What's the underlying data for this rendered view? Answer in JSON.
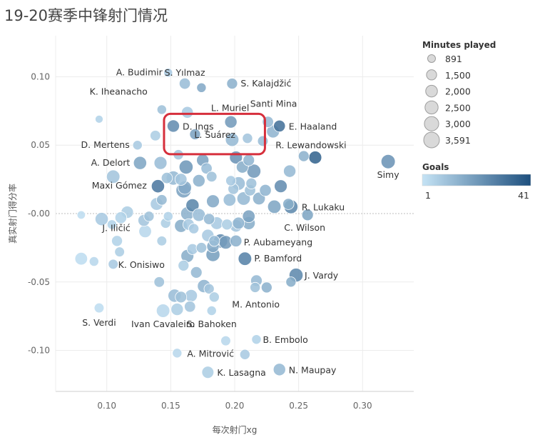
{
  "title": "19-20赛季中锋射门情况",
  "chart_data": {
    "type": "scatter",
    "title": "19-20赛季中锋射门情况",
    "xlabel": "每次射门xg",
    "ylabel": "真实射门得分率",
    "xlim": [
      0.06,
      0.34
    ],
    "ylim": [
      -0.13,
      0.13
    ],
    "x_ticks": [
      0.1,
      0.15,
      0.2,
      0.25,
      0.3
    ],
    "x_tick_labels": [
      "0.10",
      "0.15",
      "0.20",
      "0.25",
      "0.30"
    ],
    "y_ticks": [
      0.1,
      0.05,
      0.0,
      -0.05,
      -0.1
    ],
    "y_tick_labels": [
      "0.10",
      "0.05",
      "-0.00",
      "-0.05",
      "-0.10"
    ],
    "grid": true,
    "size_legend": {
      "title": "Minutes played",
      "values": [
        891,
        1500,
        2000,
        2500,
        3000,
        3591
      ],
      "labels": [
        "891",
        "1,500",
        "2,000",
        "2,500",
        "3,000",
        "3,591"
      ]
    },
    "color_legend": {
      "title": "Goals",
      "min": 1,
      "max": 41,
      "min_label": "1",
      "max_label": "41",
      "color_low": "#c5e3f5",
      "color_high": "#1d4f7e"
    },
    "highlight": [
      "D. Ings",
      "L. Suárez"
    ],
    "highlight_color": "#d62f3c",
    "points": [
      {
        "name": "A. Budimir",
        "x": 0.148,
        "y": 0.103,
        "minutes": 1100,
        "goals": 6
      },
      {
        "name": "S. Yılmaz",
        "x": 0.161,
        "y": 0.095,
        "minutes": 1800,
        "goals": 9
      },
      {
        "name": "",
        "x": 0.174,
        "y": 0.092,
        "minutes": 1300,
        "goals": 14
      },
      {
        "name": "S. Kalajdžić",
        "x": 0.198,
        "y": 0.095,
        "minutes": 1700,
        "goals": 12
      },
      {
        "name": "K. Iheanacho",
        "x": 0.143,
        "y": 0.076,
        "minutes": 1300,
        "goals": 8
      },
      {
        "name": "",
        "x": 0.163,
        "y": 0.074,
        "minutes": 2000,
        "goals": 6
      },
      {
        "name": "L. Muriel",
        "x": 0.197,
        "y": 0.067,
        "minutes": 2200,
        "goals": 18
      },
      {
        "name": "",
        "x": 0.094,
        "y": 0.069,
        "minutes": 900,
        "goals": 4
      },
      {
        "name": "Santi Mina",
        "x": 0.226,
        "y": 0.067,
        "minutes": 1800,
        "goals": 10
      },
      {
        "name": "D. Ings",
        "x": 0.152,
        "y": 0.064,
        "minutes": 2200,
        "goals": 22
      },
      {
        "name": "L. Suárez",
        "x": 0.169,
        "y": 0.058,
        "minutes": 1700,
        "goals": 16
      },
      {
        "name": "E. Haaland",
        "x": 0.235,
        "y": 0.064,
        "minutes": 2000,
        "goals": 30
      },
      {
        "name": "",
        "x": 0.23,
        "y": 0.06,
        "minutes": 2400,
        "goals": 11
      },
      {
        "name": "",
        "x": 0.138,
        "y": 0.057,
        "minutes": 1600,
        "goals": 5
      },
      {
        "name": "",
        "x": 0.198,
        "y": 0.054,
        "minutes": 2600,
        "goals": 10
      },
      {
        "name": "",
        "x": 0.21,
        "y": 0.055,
        "minutes": 1500,
        "goals": 7
      },
      {
        "name": "",
        "x": 0.222,
        "y": 0.053,
        "minutes": 1600,
        "goals": 9
      },
      {
        "name": "D. Mertens",
        "x": 0.124,
        "y": 0.05,
        "minutes": 1300,
        "goals": 6
      },
      {
        "name": "R. Lewandowski",
        "x": 0.263,
        "y": 0.041,
        "minutes": 2400,
        "goals": 34
      },
      {
        "name": "",
        "x": 0.254,
        "y": 0.042,
        "minutes": 1700,
        "goals": 12
      },
      {
        "name": "Simy",
        "x": 0.32,
        "y": 0.038,
        "minutes": 2900,
        "goals": 20
      },
      {
        "name": "A. Delort",
        "x": 0.126,
        "y": 0.037,
        "minutes": 2500,
        "goals": 15
      },
      {
        "name": "",
        "x": 0.142,
        "y": 0.037,
        "minutes": 2400,
        "goals": 9
      },
      {
        "name": "",
        "x": 0.156,
        "y": 0.043,
        "minutes": 1500,
        "goals": 7
      },
      {
        "name": "",
        "x": 0.162,
        "y": 0.034,
        "minutes": 2800,
        "goals": 19
      },
      {
        "name": "",
        "x": 0.175,
        "y": 0.039,
        "minutes": 2200,
        "goals": 16
      },
      {
        "name": "",
        "x": 0.178,
        "y": 0.033,
        "minutes": 1800,
        "goals": 9
      },
      {
        "name": "",
        "x": 0.201,
        "y": 0.041,
        "minutes": 2400,
        "goals": 20
      },
      {
        "name": "",
        "x": 0.211,
        "y": 0.039,
        "minutes": 1900,
        "goals": 11
      },
      {
        "name": "",
        "x": 0.206,
        "y": 0.034,
        "minutes": 2100,
        "goals": 13
      },
      {
        "name": "",
        "x": 0.215,
        "y": 0.031,
        "minutes": 2800,
        "goals": 18
      },
      {
        "name": "",
        "x": 0.243,
        "y": 0.031,
        "minutes": 2200,
        "goals": 10
      },
      {
        "name": "",
        "x": 0.105,
        "y": 0.027,
        "minutes": 2600,
        "goals": 7
      },
      {
        "name": "",
        "x": 0.147,
        "y": 0.026,
        "minutes": 1800,
        "goals": 8
      },
      {
        "name": "",
        "x": 0.152,
        "y": 0.026,
        "minutes": 2900,
        "goals": 10
      },
      {
        "name": "",
        "x": 0.158,
        "y": 0.025,
        "minutes": 2100,
        "goals": 7
      },
      {
        "name": "",
        "x": 0.172,
        "y": 0.024,
        "minutes": 2200,
        "goals": 12
      },
      {
        "name": "",
        "x": 0.182,
        "y": 0.027,
        "minutes": 1600,
        "goals": 8
      },
      {
        "name": "",
        "x": 0.197,
        "y": 0.024,
        "minutes": 1500,
        "goals": 6
      },
      {
        "name": "",
        "x": 0.203,
        "y": 0.022,
        "minutes": 2600,
        "goals": 9
      },
      {
        "name": "",
        "x": 0.213,
        "y": 0.022,
        "minutes": 1700,
        "goals": 8
      },
      {
        "name": "",
        "x": 0.14,
        "y": 0.02,
        "minutes": 2500,
        "goals": 28
      },
      {
        "name": "",
        "x": 0.161,
        "y": 0.019,
        "minutes": 2600,
        "goals": 14
      },
      {
        "name": "",
        "x": 0.16,
        "y": 0.017,
        "minutes": 3300,
        "goals": 16
      },
      {
        "name": "",
        "x": 0.199,
        "y": 0.018,
        "minutes": 1700,
        "goals": 7
      },
      {
        "name": "",
        "x": 0.212,
        "y": 0.017,
        "minutes": 1800,
        "goals": 8
      },
      {
        "name": "",
        "x": 0.224,
        "y": 0.017,
        "minutes": 2000,
        "goals": 11
      },
      {
        "name": "",
        "x": 0.236,
        "y": 0.02,
        "minutes": 2400,
        "goals": 22
      },
      {
        "name": "Maxi Gómez",
        "x": 0.143,
        "y": 0.01,
        "minutes": 1600,
        "goals": 10
      },
      {
        "name": "",
        "x": 0.139,
        "y": 0.007,
        "minutes": 2300,
        "goals": 6
      },
      {
        "name": "",
        "x": 0.167,
        "y": 0.006,
        "minutes": 2500,
        "goals": 24
      },
      {
        "name": "",
        "x": 0.183,
        "y": 0.009,
        "minutes": 2400,
        "goals": 14
      },
      {
        "name": "",
        "x": 0.196,
        "y": 0.01,
        "minutes": 2300,
        "goals": 9
      },
      {
        "name": "",
        "x": 0.207,
        "y": 0.011,
        "minutes": 2600,
        "goals": 10
      },
      {
        "name": "",
        "x": 0.219,
        "y": 0.011,
        "minutes": 2300,
        "goals": 12
      },
      {
        "name": "",
        "x": 0.231,
        "y": 0.005,
        "minutes": 2600,
        "goals": 15
      },
      {
        "name": "",
        "x": 0.242,
        "y": 0.007,
        "minutes": 1800,
        "goals": 13
      },
      {
        "name": "R. Lukaku",
        "x": 0.244,
        "y": 0.005,
        "minutes": 2800,
        "goals": 23
      },
      {
        "name": "",
        "x": 0.08,
        "y": -0.001,
        "minutes": 1000,
        "goals": 2
      },
      {
        "name": "",
        "x": 0.096,
        "y": -0.004,
        "minutes": 2500,
        "goals": 6
      },
      {
        "name": "",
        "x": 0.111,
        "y": -0.003,
        "minutes": 2000,
        "goals": 4
      },
      {
        "name": "",
        "x": 0.116,
        "y": 0.001,
        "minutes": 2200,
        "goals": 5
      },
      {
        "name": "",
        "x": 0.129,
        "y": -0.005,
        "minutes": 2000,
        "goals": 7
      },
      {
        "name": "",
        "x": 0.133,
        "y": -0.002,
        "minutes": 1500,
        "goals": 8
      },
      {
        "name": "",
        "x": 0.148,
        "y": -0.002,
        "minutes": 1300,
        "goals": 4
      },
      {
        "name": "",
        "x": 0.163,
        "y": 0.0,
        "minutes": 2600,
        "goals": 12
      },
      {
        "name": "",
        "x": 0.164,
        "y": -0.008,
        "minutes": 1900,
        "goals": 6
      },
      {
        "name": "",
        "x": 0.172,
        "y": -0.001,
        "minutes": 2400,
        "goals": 9
      },
      {
        "name": "",
        "x": 0.18,
        "y": -0.004,
        "minutes": 1800,
        "goals": 10
      },
      {
        "name": "",
        "x": 0.186,
        "y": -0.007,
        "minutes": 2300,
        "goals": 6
      },
      {
        "name": "",
        "x": 0.194,
        "y": -0.008,
        "minutes": 1700,
        "goals": 5
      },
      {
        "name": "",
        "x": 0.203,
        "y": -0.007,
        "minutes": 2100,
        "goals": 11
      },
      {
        "name": "",
        "x": 0.211,
        "y": -0.002,
        "minutes": 2300,
        "goals": 16
      },
      {
        "name": "",
        "x": 0.211,
        "y": -0.007,
        "minutes": 2400,
        "goals": 13
      },
      {
        "name": "C. Wilson",
        "x": 0.257,
        "y": -0.001,
        "minutes": 1900,
        "goals": 15
      },
      {
        "name": "",
        "x": 0.104,
        "y": -0.008,
        "minutes": 1300,
        "goals": 4
      },
      {
        "name": "",
        "x": 0.146,
        "y": -0.007,
        "minutes": 1500,
        "goals": 5
      },
      {
        "name": "",
        "x": 0.158,
        "y": -0.009,
        "minutes": 2400,
        "goals": 13
      },
      {
        "name": "",
        "x": 0.168,
        "y": -0.011,
        "minutes": 1500,
        "goals": 6
      },
      {
        "name": "",
        "x": 0.201,
        "y": -0.009,
        "minutes": 2200,
        "goals": 7
      },
      {
        "name": "",
        "x": 0.13,
        "y": -0.013,
        "minutes": 2300,
        "goals": 3
      },
      {
        "name": "J. Iličić",
        "x": 0.108,
        "y": -0.02,
        "minutes": 1700,
        "goals": 4
      },
      {
        "name": "",
        "x": 0.143,
        "y": -0.02,
        "minutes": 1400,
        "goals": 5
      },
      {
        "name": "",
        "x": 0.179,
        "y": -0.016,
        "minutes": 2200,
        "goals": 6
      },
      {
        "name": "",
        "x": 0.184,
        "y": -0.02,
        "minutes": 1700,
        "goals": 9
      },
      {
        "name": "",
        "x": 0.189,
        "y": -0.02,
        "minutes": 2900,
        "goals": 22
      },
      {
        "name": "",
        "x": 0.193,
        "y": -0.021,
        "minutes": 2600,
        "goals": 18
      },
      {
        "name": "P. Aubameyang",
        "x": 0.201,
        "y": -0.02,
        "minutes": 2000,
        "goals": 12
      },
      {
        "name": "",
        "x": 0.174,
        "y": -0.025,
        "minutes": 1600,
        "goals": 8
      },
      {
        "name": "",
        "x": 0.183,
        "y": -0.024,
        "minutes": 2200,
        "goals": 14
      },
      {
        "name": "",
        "x": 0.11,
        "y": -0.028,
        "minutes": 1400,
        "goals": 5
      },
      {
        "name": "",
        "x": 0.167,
        "y": -0.026,
        "minutes": 1700,
        "goals": 6
      },
      {
        "name": "P. Bamford",
        "x": 0.208,
        "y": -0.033,
        "minutes": 2600,
        "goals": 25
      },
      {
        "name": "",
        "x": 0.163,
        "y": -0.031,
        "minutes": 2400,
        "goals": 13
      },
      {
        "name": "",
        "x": 0.183,
        "y": -0.03,
        "minutes": 2800,
        "goals": 17
      },
      {
        "name": "",
        "x": 0.08,
        "y": -0.033,
        "minutes": 2300,
        "goals": 2
      },
      {
        "name": "",
        "x": 0.09,
        "y": -0.035,
        "minutes": 1300,
        "goals": 3
      },
      {
        "name": "K. Onisiwo",
        "x": 0.105,
        "y": -0.037,
        "minutes": 1400,
        "goals": 6
      },
      {
        "name": "",
        "x": 0.16,
        "y": -0.038,
        "minutes": 1700,
        "goals": 5
      },
      {
        "name": "",
        "x": 0.17,
        "y": -0.043,
        "minutes": 1900,
        "goals": 10
      },
      {
        "name": "",
        "x": 0.141,
        "y": -0.05,
        "minutes": 1600,
        "goals": 8
      },
      {
        "name": "",
        "x": 0.176,
        "y": -0.053,
        "minutes": 2500,
        "goals": 11
      },
      {
        "name": "",
        "x": 0.18,
        "y": -0.055,
        "minutes": 1500,
        "goals": 7
      },
      {
        "name": "J. Vardy",
        "x": 0.248,
        "y": -0.045,
        "minutes": 2800,
        "goals": 23
      },
      {
        "name": "",
        "x": 0.244,
        "y": -0.05,
        "minutes": 1500,
        "goals": 13
      },
      {
        "name": "",
        "x": 0.217,
        "y": -0.049,
        "minutes": 1900,
        "goals": 10
      },
      {
        "name": "",
        "x": 0.225,
        "y": -0.054,
        "minutes": 1700,
        "goals": 12
      },
      {
        "name": "M. Antonio",
        "x": 0.216,
        "y": -0.054,
        "minutes": 1500,
        "goals": 8
      },
      {
        "name": "",
        "x": 0.153,
        "y": -0.06,
        "minutes": 2500,
        "goals": 9
      },
      {
        "name": "",
        "x": 0.158,
        "y": -0.061,
        "minutes": 1900,
        "goals": 8
      },
      {
        "name": "",
        "x": 0.166,
        "y": -0.06,
        "minutes": 2200,
        "goals": 6
      },
      {
        "name": "",
        "x": 0.184,
        "y": -0.061,
        "minutes": 1500,
        "goals": 5
      },
      {
        "name": "",
        "x": 0.165,
        "y": -0.068,
        "minutes": 1800,
        "goals": 7
      },
      {
        "name": "S. Verdi",
        "x": 0.094,
        "y": -0.069,
        "minutes": 1400,
        "goals": 2
      },
      {
        "name": "Ivan Cavaleiro",
        "x": 0.144,
        "y": -0.071,
        "minutes": 2600,
        "goals": 3
      },
      {
        "name": "",
        "x": 0.155,
        "y": -0.07,
        "minutes": 2200,
        "goals": 5
      },
      {
        "name": "S. Bahoken",
        "x": 0.182,
        "y": -0.071,
        "minutes": 1300,
        "goals": 4
      },
      {
        "name": "",
        "x": 0.193,
        "y": -0.093,
        "minutes": 1400,
        "goals": 3
      },
      {
        "name": "B. Embolo",
        "x": 0.217,
        "y": -0.092,
        "minutes": 1300,
        "goals": 4
      },
      {
        "name": "A. Mitrović",
        "x": 0.155,
        "y": -0.102,
        "minutes": 1300,
        "goals": 3
      },
      {
        "name": "",
        "x": 0.208,
        "y": -0.103,
        "minutes": 1500,
        "goals": 6
      },
      {
        "name": "K. Lasagna",
        "x": 0.179,
        "y": -0.116,
        "minutes": 2100,
        "goals": 5
      },
      {
        "name": "N. Maupay",
        "x": 0.235,
        "y": -0.114,
        "minutes": 2200,
        "goals": 10
      }
    ]
  }
}
